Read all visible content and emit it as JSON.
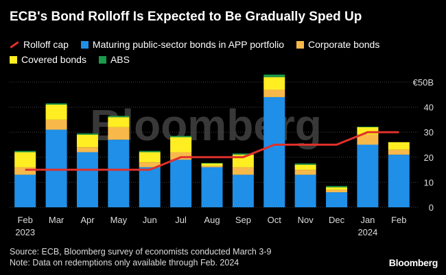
{
  "title": "ECB's Bond Rolloff Is Expected to Be Gradually Sped Up",
  "legend": [
    {
      "label": "Rolloff cap",
      "color": "#e0302a",
      "kind": "line"
    },
    {
      "label": "Maturing public-sector bonds in APP portfolio",
      "color": "#1f8fe8",
      "kind": "box"
    },
    {
      "label": "Corporate bonds",
      "color": "#f8b94a",
      "kind": "box"
    },
    {
      "label": "Covered bonds",
      "color": "#ffee22",
      "kind": "box"
    },
    {
      "label": "ABS",
      "color": "#1a9a4a",
      "kind": "box"
    }
  ],
  "footnote": {
    "source": "Source: ECB, Bloomberg survey of economists conducted March 3-9",
    "note": "Note: Data on redemptions only available through Feb. 2024"
  },
  "watermark": "Bloomberg",
  "brand": "Bloomberg",
  "chart_data": {
    "type": "bar",
    "stacked": true,
    "categories": [
      "Feb",
      "Mar",
      "Apr",
      "May",
      "Jun",
      "Jul",
      "Aug",
      "Sep",
      "Oct",
      "Nov",
      "Dec",
      "Jan",
      "Feb"
    ],
    "year_labels": [
      {
        "index": 0,
        "label": "2023"
      },
      {
        "index": 11,
        "label": "2024"
      }
    ],
    "series": [
      {
        "name": "Maturing public-sector bonds in APP portfolio",
        "color": "#1f8fe8",
        "values": [
          13,
          31,
          22,
          27,
          16,
          19,
          16,
          13,
          44,
          13,
          6,
          25,
          21
        ]
      },
      {
        "name": "Corporate bonds",
        "color": "#f8b94a",
        "values": [
          3,
          4,
          2,
          5,
          2,
          3,
          0.5,
          3,
          3,
          2,
          1,
          4,
          2
        ]
      },
      {
        "name": "Covered bonds",
        "color": "#ffee22",
        "values": [
          6,
          6,
          5,
          4,
          4,
          6,
          1,
          5,
          5,
          2,
          1,
          3,
          3
        ]
      },
      {
        "name": "ABS",
        "color": "#1a9a4a",
        "values": [
          0.5,
          0.5,
          0.5,
          0.5,
          0.5,
          0.5,
          0.2,
          0.5,
          1,
          0.5,
          0.5,
          0.2,
          0
        ]
      }
    ],
    "line": {
      "name": "Rolloff cap",
      "color": "#e0302a",
      "values": [
        15,
        15,
        15,
        15,
        15,
        20,
        20,
        20,
        25,
        25,
        25,
        30,
        30
      ]
    },
    "y_ticks": [
      0,
      10,
      20,
      30,
      40
    ],
    "y_top_label": "€50B",
    "ylim": [
      -2,
      53
    ],
    "grid": true
  }
}
